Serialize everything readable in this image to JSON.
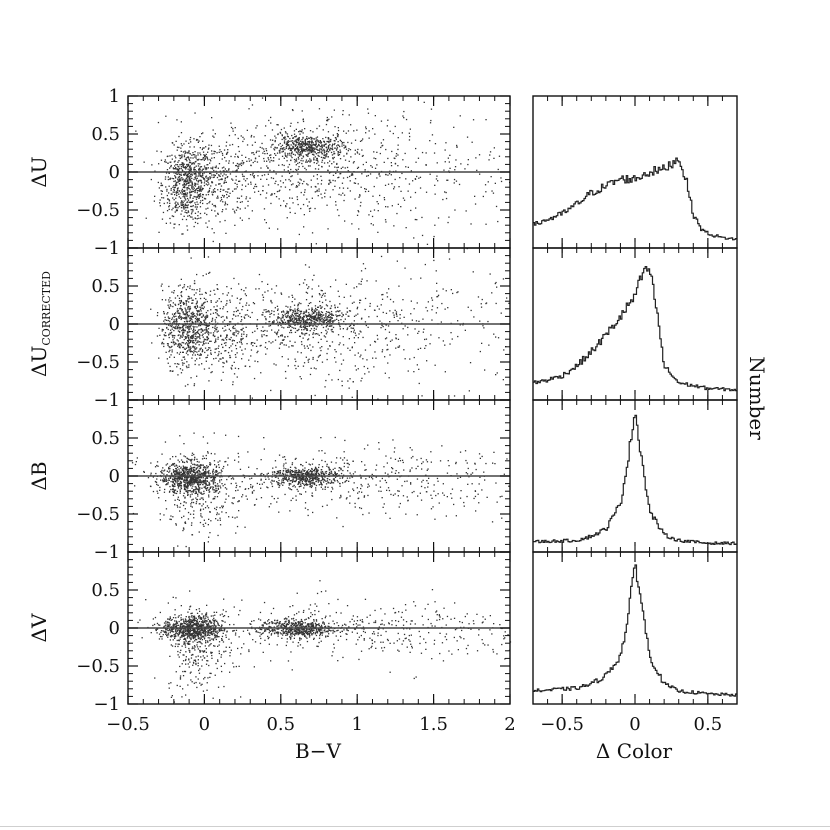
{
  "chart_data": [
    {
      "type": "scatter",
      "panel": "left-1",
      "ylabel": "ΔU",
      "xlim": [
        -0.5,
        2
      ],
      "ylim": [
        -1,
        1
      ],
      "y_ticks": [
        "−1",
        "−0.5",
        "0",
        "0.5",
        "1"
      ],
      "reference_line_y": 0,
      "clusters": [
        {
          "x": -0.12,
          "y": -0.15,
          "x_spread": 0.08,
          "y_spread": 0.25,
          "points": 620
        },
        {
          "x": 0.08,
          "y": -0.05,
          "x_spread": 0.14,
          "y_spread": 0.3,
          "points": 300
        },
        {
          "x": 0.67,
          "y": 0.33,
          "x_spread": 0.12,
          "y_spread": 0.08,
          "points": 480
        },
        {
          "x": 0.6,
          "y": 0.1,
          "x_spread": 0.35,
          "y_spread": 0.35,
          "points": 420
        },
        {
          "x": 1.15,
          "y": 0.0,
          "x_spread": 0.55,
          "y_spread": 0.45,
          "points": 380
        }
      ]
    },
    {
      "type": "scatter",
      "panel": "left-2",
      "ylabel": "ΔU",
      "ylabel_subscript": "CORRECTED",
      "xlim": [
        -0.5,
        2
      ],
      "ylim": [
        -1,
        1
      ],
      "y_ticks": [
        "−1",
        "−0.5",
        "0",
        "0.5"
      ],
      "reference_line_y": 0,
      "clusters": [
        {
          "x": -0.12,
          "y": -0.02,
          "x_spread": 0.08,
          "y_spread": 0.25,
          "points": 620
        },
        {
          "x": 0.08,
          "y": -0.1,
          "x_spread": 0.14,
          "y_spread": 0.3,
          "points": 300
        },
        {
          "x": 0.67,
          "y": 0.07,
          "x_spread": 0.12,
          "y_spread": 0.08,
          "points": 480
        },
        {
          "x": 0.65,
          "y": -0.05,
          "x_spread": 0.35,
          "y_spread": 0.3,
          "points": 380
        },
        {
          "x": 1.2,
          "y": 0.0,
          "x_spread": 0.55,
          "y_spread": 0.4,
          "points": 320
        }
      ]
    },
    {
      "type": "scatter",
      "panel": "left-3",
      "ylabel": "ΔB",
      "xlim": [
        -0.5,
        2
      ],
      "ylim": [
        -1,
        1
      ],
      "y_ticks": [
        "−1",
        "−0.5",
        "0",
        "0.5"
      ],
      "reference_line_y": 0,
      "clusters": [
        {
          "x": -0.1,
          "y": -0.02,
          "x_spread": 0.1,
          "y_spread": 0.1,
          "points": 700
        },
        {
          "x": 0.0,
          "y": -0.2,
          "x_spread": 0.15,
          "y_spread": 0.3,
          "points": 300
        },
        {
          "x": 0.65,
          "y": 0.0,
          "x_spread": 0.12,
          "y_spread": 0.07,
          "points": 500
        },
        {
          "x": 1.0,
          "y": -0.05,
          "x_spread": 0.6,
          "y_spread": 0.22,
          "points": 450
        }
      ]
    },
    {
      "type": "scatter",
      "panel": "left-4",
      "ylabel": "ΔV",
      "xlabel": "B−V",
      "xlim": [
        -0.5,
        2
      ],
      "ylim": [
        -1,
        1
      ],
      "x_ticks": [
        "−0.5",
        "0",
        "0.5",
        "1",
        "1.5",
        "2"
      ],
      "y_ticks": [
        "−1",
        "−0.5",
        "0",
        "0.5"
      ],
      "reference_line_y": 0,
      "clusters": [
        {
          "x": -0.08,
          "y": 0.0,
          "x_spread": 0.1,
          "y_spread": 0.08,
          "points": 700
        },
        {
          "x": -0.05,
          "y": -0.25,
          "x_spread": 0.1,
          "y_spread": 0.3,
          "points": 280
        },
        {
          "x": 0.6,
          "y": 0.0,
          "x_spread": 0.12,
          "y_spread": 0.06,
          "points": 500
        },
        {
          "x": 1.0,
          "y": -0.03,
          "x_spread": 0.6,
          "y_spread": 0.2,
          "points": 450
        }
      ]
    },
    {
      "type": "line",
      "panel": "right-1",
      "xlim": [
        -0.7,
        0.7
      ],
      "x": [
        -0.7,
        -0.6,
        -0.5,
        -0.4,
        -0.3,
        -0.2,
        -0.1,
        0.0,
        0.1,
        0.2,
        0.3,
        0.35,
        0.4,
        0.45,
        0.5,
        0.6,
        0.7
      ],
      "y": [
        0.12,
        0.16,
        0.2,
        0.27,
        0.35,
        0.4,
        0.45,
        0.45,
        0.5,
        0.52,
        0.6,
        0.45,
        0.2,
        0.1,
        0.06,
        0.03,
        0.02
      ],
      "note": "y normalized to panel height"
    },
    {
      "type": "line",
      "panel": "right-2",
      "xlim": [
        -0.7,
        0.7
      ],
      "x": [
        -0.7,
        -0.6,
        -0.5,
        -0.4,
        -0.3,
        -0.2,
        -0.1,
        0.0,
        0.05,
        0.1,
        0.15,
        0.2,
        0.3,
        0.5,
        0.7
      ],
      "y": [
        0.08,
        0.1,
        0.13,
        0.2,
        0.3,
        0.42,
        0.55,
        0.7,
        0.85,
        0.9,
        0.6,
        0.2,
        0.08,
        0.04,
        0.03
      ]
    },
    {
      "type": "line",
      "panel": "right-3",
      "xlim": [
        -0.7,
        0.7
      ],
      "x": [
        -0.7,
        -0.4,
        -0.3,
        -0.2,
        -0.1,
        -0.05,
        0.0,
        0.05,
        0.1,
        0.2,
        0.3,
        0.5,
        0.7
      ],
      "y": [
        0.03,
        0.04,
        0.07,
        0.12,
        0.3,
        0.6,
        0.97,
        0.6,
        0.25,
        0.08,
        0.04,
        0.02,
        0.02
      ]
    },
    {
      "type": "line",
      "panel": "right-4",
      "xlabel": "Δ Color",
      "xlim": [
        -0.7,
        0.7
      ],
      "x_ticks": [
        "−0.5",
        "0",
        "0.5"
      ],
      "x": [
        -0.7,
        -0.4,
        -0.3,
        -0.2,
        -0.1,
        -0.05,
        0.0,
        0.05,
        0.1,
        0.2,
        0.3,
        0.5,
        0.7
      ],
      "y": [
        0.05,
        0.07,
        0.1,
        0.16,
        0.3,
        0.55,
        0.97,
        0.65,
        0.3,
        0.1,
        0.05,
        0.03,
        0.02
      ]
    }
  ],
  "right_ylabel": "Number"
}
